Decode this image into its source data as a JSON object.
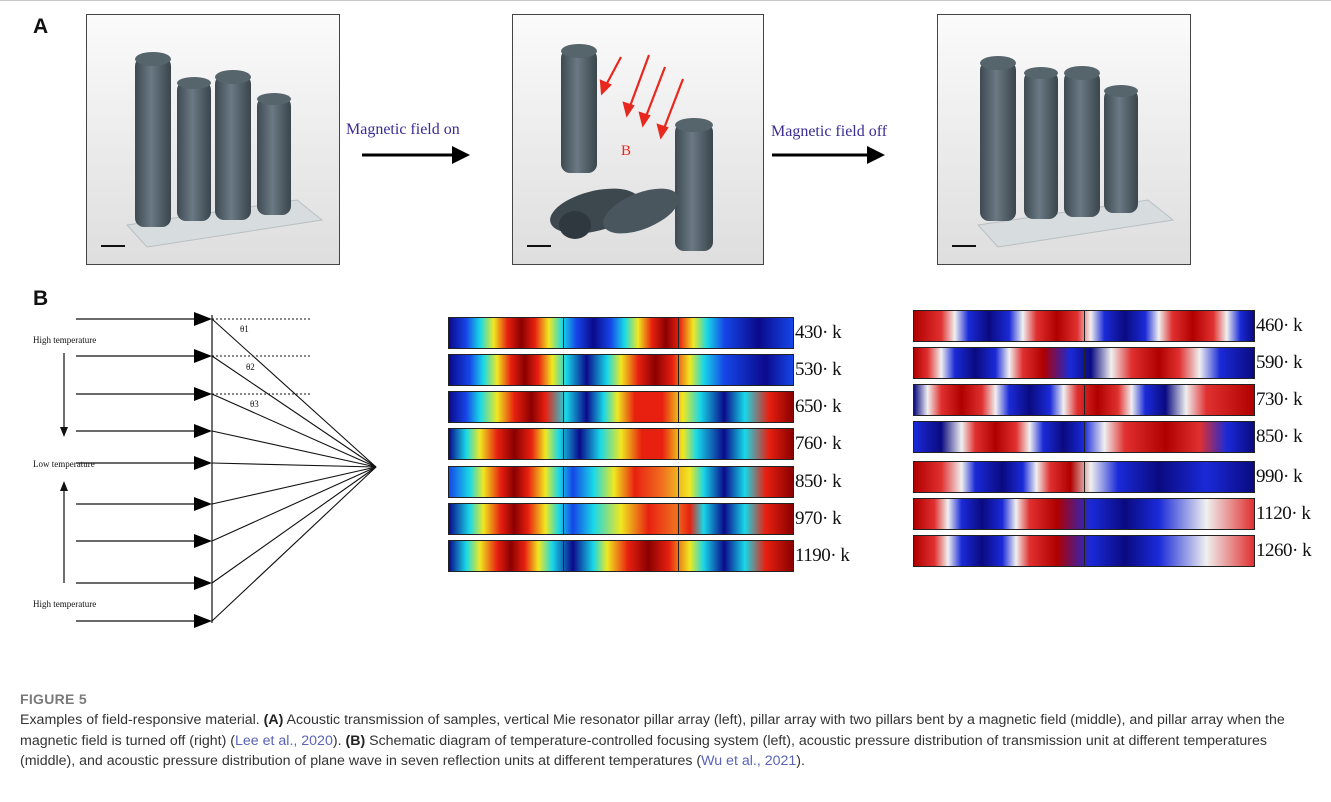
{
  "panel_a": {
    "label": "A",
    "arrow_on_label": "Magnetic field on",
    "arrow_off_label": "Magnetic field off",
    "field_symbol": "B"
  },
  "panel_b": {
    "label": "B",
    "schematic": {
      "label_high_top": "High temperature",
      "label_low": "Low temperature",
      "label_high_bottom": "High temperature",
      "angle_labels": [
        "θ1",
        "θ2",
        "θ3"
      ]
    },
    "middle_temperatures": [
      "430· k",
      "530· k",
      "650· k",
      "760· k",
      "850· k",
      "970· k",
      "1190· k"
    ],
    "right_temperatures": [
      "460· k",
      "590· k",
      "730· k",
      "850· k",
      "990· k",
      "1120· k",
      "1260· k"
    ]
  },
  "caption": {
    "figure_label": "FIGURE 5",
    "intro": "Examples of field-responsive material.",
    "a_tag": "(A)",
    "a_text": " Acoustic transmission of samples, vertical Mie resonator pillar array (left), pillar array with two pillars bent by a magnetic field (middle), and pillar array when the magnetic field is turned off (right) (",
    "a_cite": "Lee et al., 2020",
    "a_end": ").",
    "b_tag": "(B)",
    "b_text": " Schematic diagram of temperature-controlled focusing system (left), acoustic pressure distribution of transmission unit at different temperatures (middle), and acoustic pressure distribution of plane wave in seven reflection units at different temperatures (",
    "b_cite": "Wu et al., 2021",
    "b_end": ")."
  },
  "colors": {
    "arrow_label": "#3a2c93",
    "citation": "#5a63b8",
    "field_arrow": "#e8281e",
    "pillar": "#5b6a73"
  }
}
